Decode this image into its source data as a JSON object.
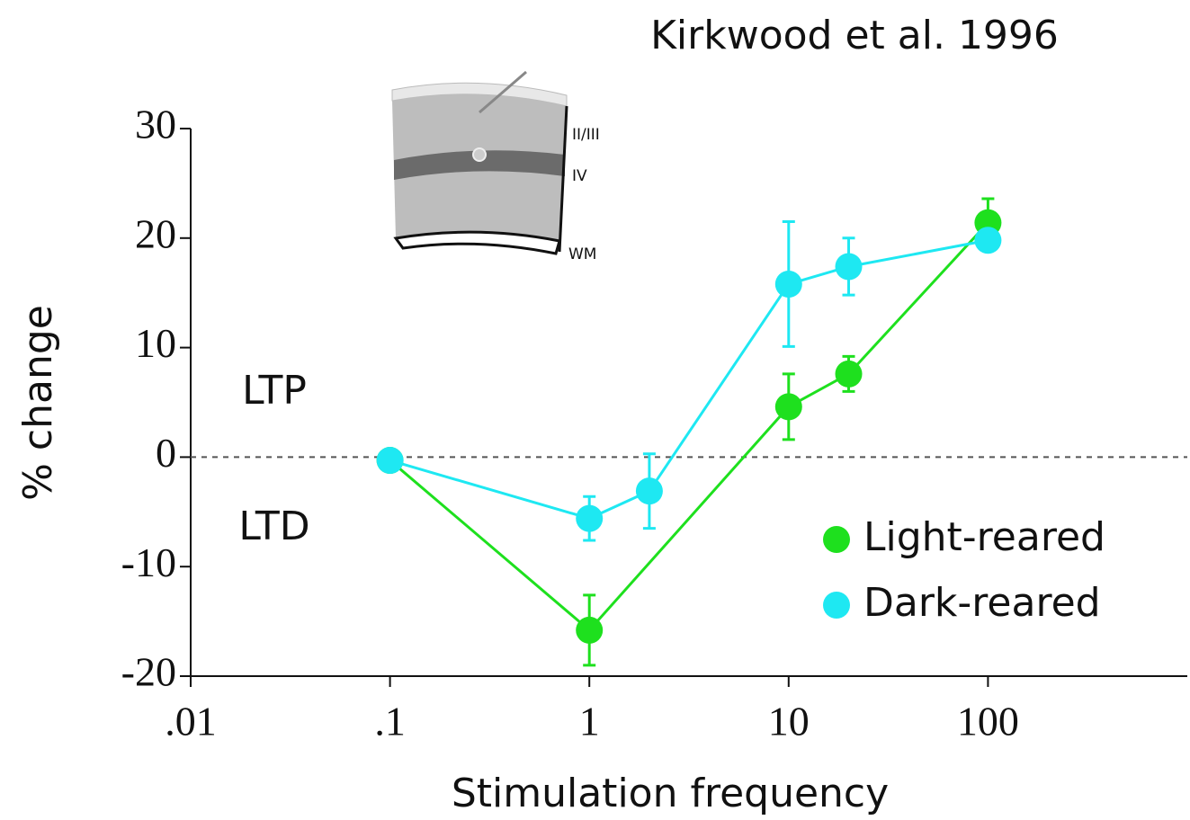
{
  "chart_data": {
    "type": "line",
    "title": "Kirkwood et al. 1996",
    "x_label": "Stimulation frequency",
    "y_label": "% change",
    "annotations": [
      "LTP",
      "LTD"
    ],
    "inset_labels": [
      "II/III",
      "IV",
      "WM"
    ],
    "log_x": true,
    "xlim": [
      0.01,
      1000
    ],
    "xticks": [
      {
        "value": 0.01,
        "label": ".01"
      },
      {
        "value": 0.1,
        "label": ".1"
      },
      1,
      10,
      100
    ],
    "ylim": [
      -20,
      30
    ],
    "yticks": [
      -20,
      -10,
      0,
      10,
      20,
      30
    ],
    "reference_line": 0,
    "legend": "lower right",
    "series": [
      {
        "name": "Light-reared",
        "color": "#1ee01e",
        "x": [
          0.1,
          1,
          10,
          20,
          100
        ],
        "values": [
          -0.3,
          -15.8,
          4.6,
          7.6,
          21.4
        ],
        "errors": [
          null,
          3.2,
          3,
          1.6,
          2.2
        ]
      },
      {
        "name": "Dark-reared",
        "color": "#1ee8f2",
        "x": [
          0.1,
          1,
          2,
          10,
          20,
          100
        ],
        "values": [
          -0.3,
          -5.6,
          -3.1,
          15.8,
          17.4,
          19.8
        ],
        "errors": [
          null,
          2,
          3.4,
          5.7,
          2.6,
          null
        ]
      }
    ]
  }
}
